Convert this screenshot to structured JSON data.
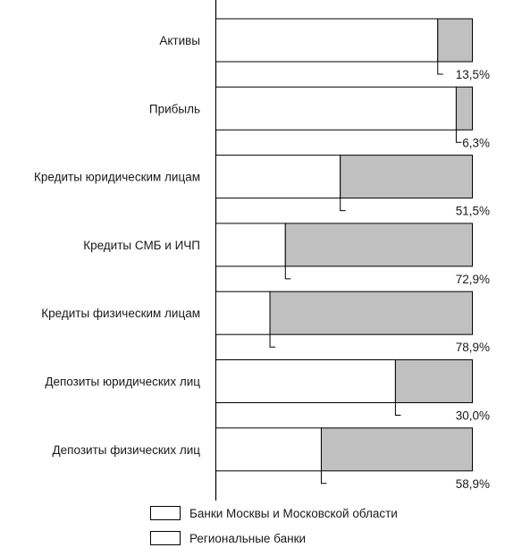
{
  "chart_data": {
    "type": "bar",
    "orientation": "horizontal",
    "stacked": true,
    "categories": [
      "Активы",
      "Прибыль",
      "Кредиты юридическим лицам",
      "Кредиты СМБ и ИЧП",
      "Кредиты физическим лицам",
      "Депозиты юридических лиц",
      "Депозиты физических лиц"
    ],
    "series": [
      {
        "name": "Банки Москвы и Московской области",
        "values": [
          86.5,
          93.7,
          48.5,
          27.1,
          21.1,
          70.0,
          41.1
        ],
        "color": "#ffffff"
      },
      {
        "name": "Региональные банки",
        "values": [
          13.5,
          6.3,
          51.5,
          72.9,
          78.9,
          30.0,
          58.9
        ],
        "color": "#c0c0c0"
      }
    ],
    "data_labels": [
      "13,5%",
      "6,3%",
      "51,5%",
      "72,9%",
      "78,9%",
      "30,0%",
      "58,9%"
    ],
    "xlim": [
      0,
      100
    ],
    "grid": false,
    "legend_position": "bottom"
  },
  "legend": {
    "items": [
      {
        "label": "Банки Москвы и Московской области"
      },
      {
        "label": "Региональные банки"
      }
    ]
  }
}
